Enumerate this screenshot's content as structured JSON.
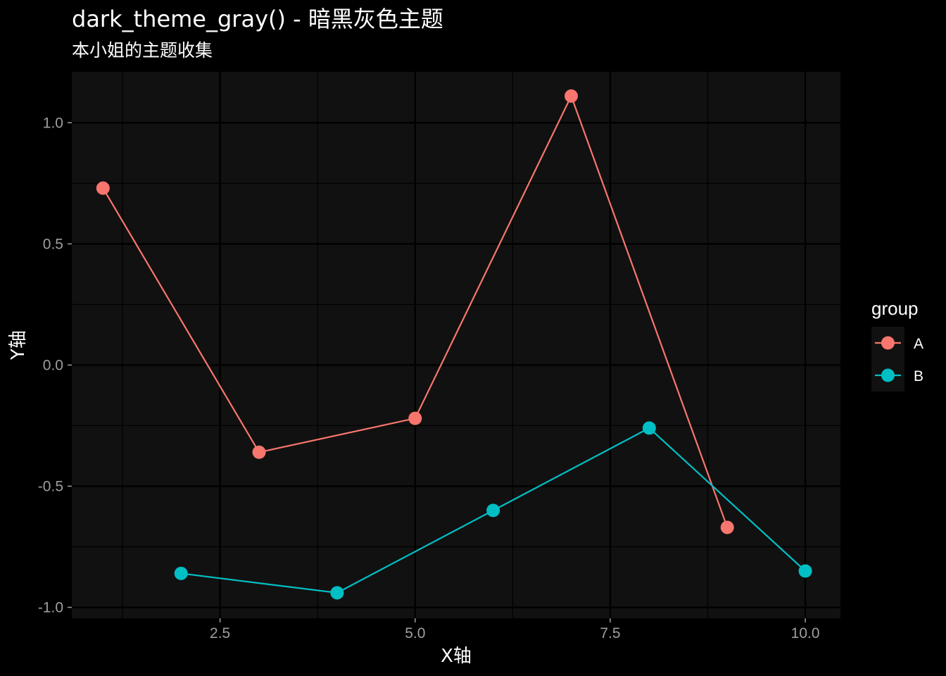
{
  "chart_data": {
    "type": "line",
    "title": "dark_theme_gray() - 暗黑灰色主题",
    "subtitle": "本小姐的主题收集",
    "xlabel": "X轴",
    "ylabel": "Y轴",
    "xlim": [
      0.6,
      10.45
    ],
    "ylim": [
      -1.045,
      1.21
    ],
    "x_ticks": [
      2.5,
      5.0,
      7.5,
      10.0
    ],
    "x_tick_labels": [
      "2.5",
      "5.0",
      "7.5",
      "10.0"
    ],
    "y_ticks": [
      -1.0,
      -0.5,
      0.0,
      0.5,
      1.0
    ],
    "y_tick_labels": [
      "-1.0",
      "-0.5",
      "0.0",
      "0.5",
      "1.0"
    ],
    "grid": true,
    "legend": {
      "title": "group",
      "position": "right"
    },
    "series": [
      {
        "name": "A",
        "color": "#F8766D",
        "points": [
          {
            "x": 1,
            "y": 0.73
          },
          {
            "x": 3,
            "y": -0.36
          },
          {
            "x": 5,
            "y": -0.22
          },
          {
            "x": 7,
            "y": 1.11
          },
          {
            "x": 9,
            "y": -0.67
          }
        ]
      },
      {
        "name": "B",
        "color": "#00BFC4",
        "points": [
          {
            "x": 2,
            "y": -0.86
          },
          {
            "x": 4,
            "y": -0.94
          },
          {
            "x": 6,
            "y": -0.6
          },
          {
            "x": 8,
            "y": -0.26
          },
          {
            "x": 10,
            "y": -0.85
          }
        ]
      }
    ],
    "colors": {
      "page_background": "#000000",
      "panel_background": "#111111",
      "major_grid": "#000000",
      "minor_grid": "#000000",
      "text": "#ffffff",
      "tick_text": "#9e9e9e",
      "legend_key_background": "#111111"
    }
  }
}
